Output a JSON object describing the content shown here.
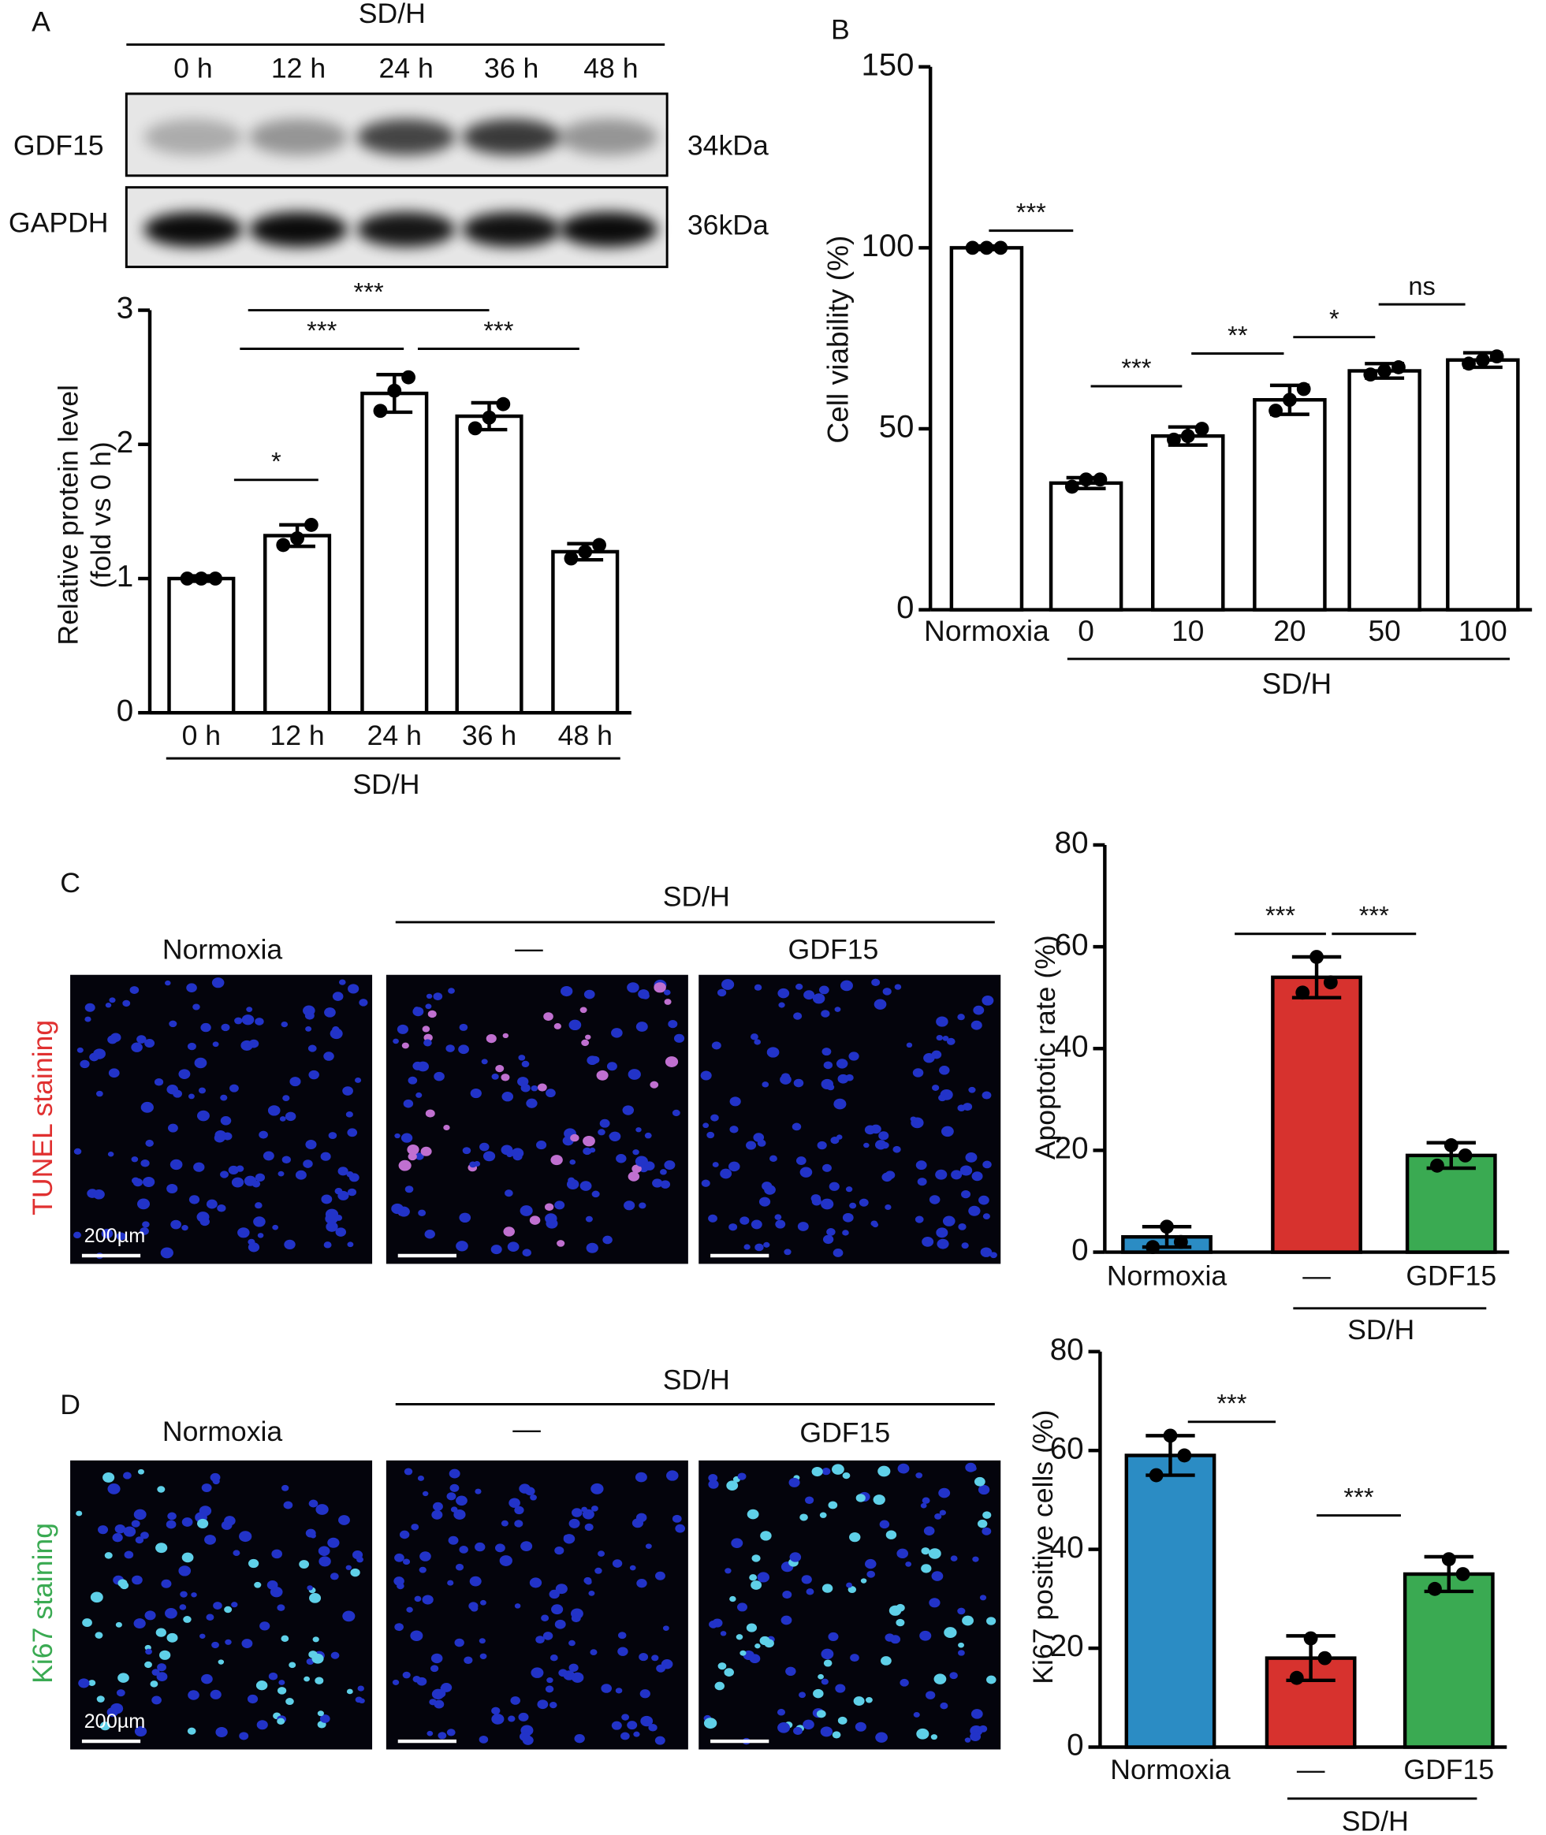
{
  "chart_data": [
    {
      "type": "bar",
      "categories": [
        "0 h",
        "12 h",
        "24 h",
        "36 h",
        "48 h"
      ],
      "values": [
        1.0,
        1.32,
        2.38,
        2.21,
        1.2
      ],
      "errors": [
        0.02,
        0.08,
        0.14,
        0.1,
        0.06
      ],
      "points": [
        [
          1.0,
          1.0,
          1.0
        ],
        [
          1.25,
          1.3,
          1.4
        ],
        [
          2.25,
          2.4,
          2.5
        ],
        [
          2.12,
          2.2,
          2.3
        ],
        [
          1.15,
          1.2,
          1.25
        ]
      ],
      "color": "#ffffff",
      "ylim": [
        0,
        3
      ],
      "yticks": [
        0,
        1,
        2,
        3
      ],
      "y_label": [
        "Relative protein level",
        "(fold vs 0 h)"
      ],
      "group_label": "SD/H",
      "annotations": [
        "*",
        "***",
        "***",
        "***"
      ]
    },
    {
      "type": "bar",
      "categories": [
        "Normoxia",
        "0",
        "10",
        "20",
        "50",
        "100"
      ],
      "values": [
        100,
        35,
        48,
        58,
        66,
        69
      ],
      "errors": [
        0.5,
        1.5,
        2.5,
        4,
        2,
        2
      ],
      "points": [
        [
          100,
          100,
          100
        ],
        [
          34,
          36,
          36
        ],
        [
          47,
          48,
          50
        ],
        [
          55,
          58,
          61
        ],
        [
          65,
          66,
          67
        ],
        [
          68,
          69,
          70
        ]
      ],
      "color": "#ffffff",
      "ylim": [
        0,
        150
      ],
      "yticks": [
        0,
        50,
        100,
        150
      ],
      "y_label": [
        "Cell viability (%)"
      ],
      "group_label": "SD/H",
      "annotations": [
        "***",
        "***",
        "**",
        "*",
        "ns"
      ]
    },
    {
      "type": "bar",
      "categories": [
        "Normoxia",
        "—",
        "GDF15"
      ],
      "values": [
        3,
        54,
        19
      ],
      "errors": [
        2,
        4,
        2.5
      ],
      "points": [
        [
          1,
          5,
          2
        ],
        [
          51,
          58,
          53
        ],
        [
          17,
          21,
          19
        ]
      ],
      "colors": [
        "#2b8cc4",
        "#d7322e",
        "#3aaa52"
      ],
      "ylim": [
        0,
        80
      ],
      "yticks": [
        0,
        20,
        40,
        60,
        80
      ],
      "y_label": [
        "Apoptotic rate (%)"
      ],
      "group_label": "SD/H",
      "annotations": [
        "***",
        "***"
      ]
    },
    {
      "type": "bar",
      "categories": [
        "Normoxia",
        "—",
        "GDF15"
      ],
      "values": [
        59,
        18,
        35
      ],
      "errors": [
        4,
        4.5,
        3.5
      ],
      "points": [
        [
          55,
          63,
          59
        ],
        [
          14,
          22,
          18
        ],
        [
          32,
          38,
          35
        ]
      ],
      "colors": [
        "#2b8cc4",
        "#d7322e",
        "#3aaa52"
      ],
      "ylim": [
        0,
        80
      ],
      "yticks": [
        0,
        20,
        40,
        60,
        80
      ],
      "y_label": [
        "Ki67 positive cells (%)"
      ],
      "group_label": "SD/H",
      "annotations": [
        "***",
        "***"
      ]
    }
  ],
  "figure": {
    "panel_labels": [
      "A",
      "B",
      "C",
      "D"
    ],
    "blot": {
      "group": "SD/H",
      "lanes": [
        "0 h",
        "12 h",
        "24 h",
        "36 h",
        "48 h"
      ],
      "proteins": [
        "GDF15",
        "GAPDH"
      ],
      "sizes": [
        "34kDa",
        "36kDa"
      ]
    },
    "imaging": {
      "conditions": [
        "Normoxia",
        "—",
        "GDF15"
      ],
      "group": "SD/H",
      "stains": [
        "TUNEL staining",
        "Ki67 staining"
      ],
      "scale_bar": "200µm"
    }
  }
}
